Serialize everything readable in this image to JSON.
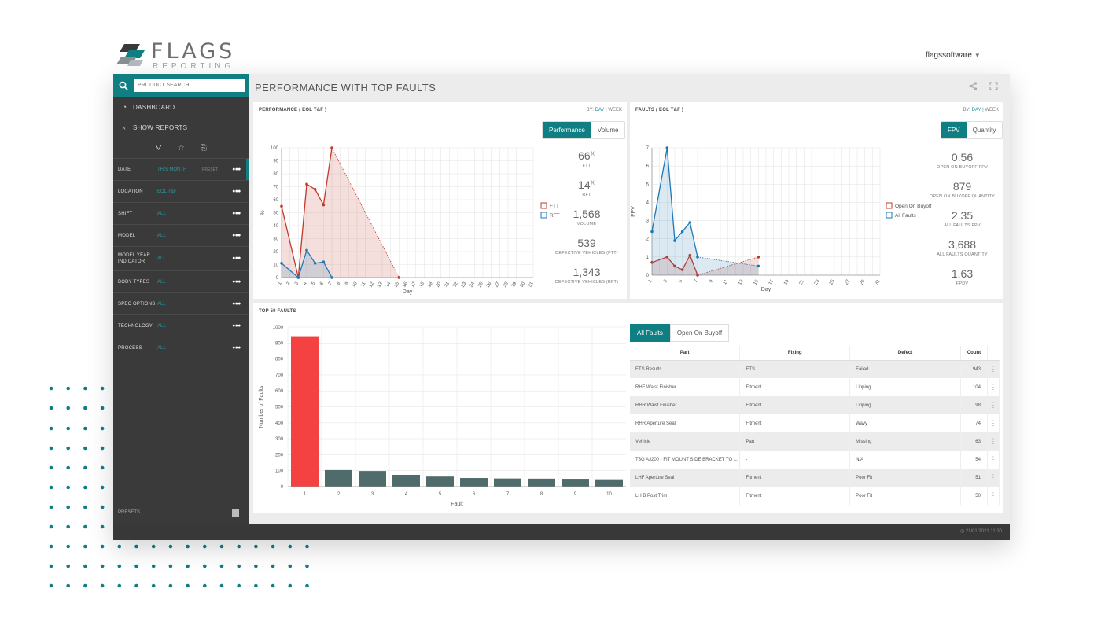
{
  "brand": {
    "title": "FLAGS",
    "subtitle": "REPORTING"
  },
  "user": {
    "name": "flagssoftware"
  },
  "sidebar": {
    "search_placeholder": "PRODUCT SEARCH",
    "nav": [
      {
        "label": "DASHBOARD",
        "icon": "dashboard-icon"
      },
      {
        "label": "SHOW REPORTS",
        "icon": "chevron-left-icon"
      }
    ],
    "filters": [
      {
        "label": "DATE",
        "value": "THIS MONTH",
        "extra": "PRESET"
      },
      {
        "label": "LOCATION",
        "value": "EOL T&F"
      },
      {
        "label": "SHIFT",
        "value": "ALL"
      },
      {
        "label": "MODEL",
        "value": "ALL"
      },
      {
        "label": "MODEL YEAR INDICATOR",
        "value": "ALL"
      },
      {
        "label": "BODY TYPES",
        "value": "ALL"
      },
      {
        "label": "SPEC OPTIONS",
        "value": "ALL"
      },
      {
        "label": "TECHNOLOGY",
        "value": "ALL"
      },
      {
        "label": "PROCESS",
        "value": "ALL"
      }
    ],
    "presets_label": "PRESETS"
  },
  "main": {
    "title": "PERFORMANCE WITH TOP FAULTS"
  },
  "footer": {
    "timestamp": "21/01/2021 11:30"
  },
  "panels": {
    "performance": {
      "title": "PERFORMANCE ( EOL T&F )",
      "by_label": "BY:",
      "day": "DAY",
      "sep": "|",
      "week": "WEEK",
      "toggle": [
        "Performance",
        "Volume"
      ],
      "kpis": [
        {
          "value": "66",
          "unit": "%",
          "label": "FTT"
        },
        {
          "value": "14",
          "unit": "%",
          "label": "RFT"
        },
        {
          "value": "1,568",
          "unit": "",
          "label": "VOLUME"
        },
        {
          "value": "539",
          "unit": "",
          "label": "DEFECTIVE VEHICLES (FTT)"
        },
        {
          "value": "1,343",
          "unit": "",
          "label": "DEFECTIVE VEHICLES (RFT)"
        }
      ]
    },
    "faults": {
      "title": "FAULTS ( EOL T&F )",
      "by_label": "BY:",
      "day": "DAY",
      "sep": "|",
      "week": "WEEK",
      "toggle": [
        "FPV",
        "Quantity"
      ],
      "kpis": [
        {
          "value": "0.56",
          "label": "OPEN ON BUYOFF FPV"
        },
        {
          "value": "879",
          "label": "OPEN ON BUYOFF QUANTITY"
        },
        {
          "value": "2.35",
          "label": "ALL FAULTS FPV"
        },
        {
          "value": "3,688",
          "label": "ALL FAULTS QUANTITY"
        },
        {
          "value": "1.63",
          "label": "FPDV"
        }
      ]
    },
    "top50": {
      "title": "TOP 50 FAULTS",
      "tabs": [
        "All Faults",
        "Open On Buyoff"
      ],
      "columns": [
        "Part",
        "Fixing",
        "Defect",
        "Count"
      ],
      "rows": [
        {
          "part": "ETS Results",
          "fixing": "ETS",
          "defect": "Failed",
          "count": "943"
        },
        {
          "part": "RHF Waist Finisher",
          "fixing": "Fitment",
          "defect": "Lipping",
          "count": "104"
        },
        {
          "part": "RHR Waist Finisher",
          "fixing": "Fitment",
          "defect": "Lipping",
          "count": "98"
        },
        {
          "part": "RHR Aperture Seal",
          "fixing": "Fitment",
          "defect": "Wavy",
          "count": "74"
        },
        {
          "part": "Vehicle",
          "fixing": "Part",
          "defect": "Missing",
          "count": "63"
        },
        {
          "part": "T3G AJ200 - FIT MOUNT SIDE BRACKET TO ...",
          "fixing": "-",
          "defect": "N/A",
          "count": "54"
        },
        {
          "part": "LHF Aperture Seal",
          "fixing": "Fitment",
          "defect": "Poor Fit",
          "count": "51"
        },
        {
          "part": "LH B Post Trim",
          "fixing": "Fitment",
          "defect": "Poor Fit",
          "count": "50"
        }
      ]
    }
  },
  "chart_data": [
    {
      "type": "line",
      "ylabel": "%",
      "xlabel": "Day",
      "ylim": [
        0,
        100
      ],
      "y_ticks": [
        0,
        10,
        20,
        30,
        40,
        50,
        60,
        70,
        80,
        90,
        100
      ],
      "x": [
        1,
        2,
        3,
        4,
        5,
        6,
        7,
        8,
        9,
        10,
        11,
        12,
        13,
        14,
        15,
        16,
        17,
        18,
        19,
        20,
        21,
        22,
        23,
        24,
        25,
        26,
        27,
        28,
        29,
        30,
        31
      ],
      "series": [
        {
          "name": "FTT",
          "color": "#c0392b",
          "points": [
            [
              1,
              55
            ],
            [
              3,
              0
            ],
            [
              4,
              72
            ],
            [
              5,
              68
            ],
            [
              6,
              56
            ],
            [
              7,
              100
            ],
            [
              15,
              0
            ]
          ]
        },
        {
          "name": "RFT",
          "color": "#1f78b4",
          "points": [
            [
              1,
              11
            ],
            [
              3,
              0
            ],
            [
              4,
              21
            ],
            [
              5,
              11
            ],
            [
              6,
              12
            ],
            [
              7,
              0
            ]
          ]
        }
      ]
    },
    {
      "type": "line",
      "ylabel": "FPV",
      "xlabel": "Day",
      "ylim": [
        0,
        7
      ],
      "y_ticks": [
        0,
        1,
        2,
        3,
        4,
        5,
        6,
        7
      ],
      "x": [
        1,
        2,
        3,
        4,
        5,
        6,
        7,
        8,
        9,
        10,
        11,
        12,
        13,
        14,
        15,
        16,
        17,
        18,
        19,
        20,
        21,
        22,
        23,
        24,
        25,
        26,
        27,
        28,
        29,
        30,
        31
      ],
      "series": [
        {
          "name": "Open On Buyoff",
          "color": "#c0392b",
          "points": [
            [
              1,
              0.7
            ],
            [
              3,
              1.0
            ],
            [
              4,
              0.5
            ],
            [
              5,
              0.3
            ],
            [
              6,
              1.1
            ],
            [
              7,
              0.0
            ],
            [
              15,
              1.0
            ]
          ]
        },
        {
          "name": "All Faults",
          "color": "#1f78b4",
          "points": [
            [
              1,
              2.4
            ],
            [
              3,
              7.0
            ],
            [
              4,
              1.9
            ],
            [
              5,
              2.4
            ],
            [
              6,
              2.9
            ],
            [
              7,
              1.0
            ],
            [
              15,
              0.5
            ]
          ]
        }
      ]
    },
    {
      "type": "bar",
      "xlabel": "Fault",
      "ylabel": "Number of Faults",
      "ylim": [
        0,
        1000
      ],
      "y_ticks": [
        0,
        100,
        200,
        300,
        400,
        500,
        600,
        700,
        800,
        900,
        1000
      ],
      "categories": [
        "1",
        "2",
        "3",
        "4",
        "5",
        "6",
        "7",
        "8",
        "9",
        "10"
      ],
      "values": [
        943,
        104,
        98,
        74,
        63,
        54,
        51,
        50,
        49,
        46
      ],
      "colors": [
        "#f44242",
        "#4f6b6b"
      ]
    }
  ]
}
